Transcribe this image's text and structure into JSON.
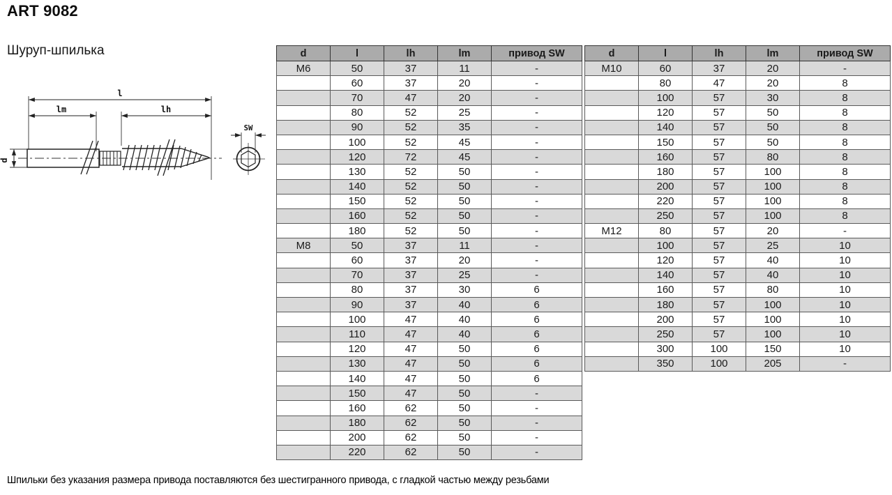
{
  "page": {
    "title": "ART 9082",
    "subtitle": "Шуруп-шпилька",
    "footnote": "Шпильки без указания размера привода поставляются без шестигранного привода, с гладкой частью между резьбами"
  },
  "drawing": {
    "labels": {
      "total_length": "l",
      "machine_thread_length": "lm",
      "wood_thread_length": "lh",
      "diameter": "d",
      "drive_size": "SW"
    }
  },
  "colors": {
    "header_bg": "#ababab",
    "row_alt_bg": "#d9d9d9"
  },
  "tables": [
    {
      "headers": [
        "d",
        "l",
        "lh",
        "lm",
        "привод SW"
      ],
      "rows": [
        [
          "M6",
          "50",
          "37",
          "11",
          "-"
        ],
        [
          "",
          "60",
          "37",
          "20",
          "-"
        ],
        [
          "",
          "70",
          "47",
          "20",
          "-"
        ],
        [
          "",
          "80",
          "52",
          "25",
          "-"
        ],
        [
          "",
          "90",
          "52",
          "35",
          "-"
        ],
        [
          "",
          "100",
          "52",
          "45",
          "-"
        ],
        [
          "",
          "120",
          "72",
          "45",
          "-"
        ],
        [
          "",
          "130",
          "52",
          "50",
          "-"
        ],
        [
          "",
          "140",
          "52",
          "50",
          "-"
        ],
        [
          "",
          "150",
          "52",
          "50",
          "-"
        ],
        [
          "",
          "160",
          "52",
          "50",
          "-"
        ],
        [
          "",
          "180",
          "52",
          "50",
          "-"
        ],
        [
          "M8",
          "50",
          "37",
          "11",
          "-"
        ],
        [
          "",
          "60",
          "37",
          "20",
          "-"
        ],
        [
          "",
          "70",
          "37",
          "25",
          "-"
        ],
        [
          "",
          "80",
          "37",
          "30",
          "6"
        ],
        [
          "",
          "90",
          "37",
          "40",
          "6"
        ],
        [
          "",
          "100",
          "47",
          "40",
          "6"
        ],
        [
          "",
          "110",
          "47",
          "40",
          "6"
        ],
        [
          "",
          "120",
          "47",
          "50",
          "6"
        ],
        [
          "",
          "130",
          "47",
          "50",
          "6"
        ],
        [
          "",
          "140",
          "47",
          "50",
          "6"
        ],
        [
          "",
          "150",
          "47",
          "50",
          "-"
        ],
        [
          "",
          "160",
          "62",
          "50",
          "-"
        ],
        [
          "",
          "180",
          "62",
          "50",
          "-"
        ],
        [
          "",
          "200",
          "62",
          "50",
          "-"
        ],
        [
          "",
          "220",
          "62",
          "50",
          "-"
        ]
      ]
    },
    {
      "headers": [
        "d",
        "l",
        "lh",
        "lm",
        "привод SW"
      ],
      "rows": [
        [
          "M10",
          "60",
          "37",
          "20",
          "-"
        ],
        [
          "",
          "80",
          "47",
          "20",
          "8"
        ],
        [
          "",
          "100",
          "57",
          "30",
          "8"
        ],
        [
          "",
          "120",
          "57",
          "50",
          "8"
        ],
        [
          "",
          "140",
          "57",
          "50",
          "8"
        ],
        [
          "",
          "150",
          "57",
          "50",
          "8"
        ],
        [
          "",
          "160",
          "57",
          "80",
          "8"
        ],
        [
          "",
          "180",
          "57",
          "100",
          "8"
        ],
        [
          "",
          "200",
          "57",
          "100",
          "8"
        ],
        [
          "",
          "220",
          "57",
          "100",
          "8"
        ],
        [
          "",
          "250",
          "57",
          "100",
          "8"
        ],
        [
          "M12",
          "80",
          "57",
          "20",
          "-"
        ],
        [
          "",
          "100",
          "57",
          "25",
          "10"
        ],
        [
          "",
          "120",
          "57",
          "40",
          "10"
        ],
        [
          "",
          "140",
          "57",
          "40",
          "10"
        ],
        [
          "",
          "160",
          "57",
          "80",
          "10"
        ],
        [
          "",
          "180",
          "57",
          "100",
          "10"
        ],
        [
          "",
          "200",
          "57",
          "100",
          "10"
        ],
        [
          "",
          "250",
          "57",
          "100",
          "10"
        ],
        [
          "",
          "300",
          "100",
          "150",
          "10"
        ],
        [
          "",
          "350",
          "100",
          "205",
          "-"
        ]
      ]
    }
  ]
}
